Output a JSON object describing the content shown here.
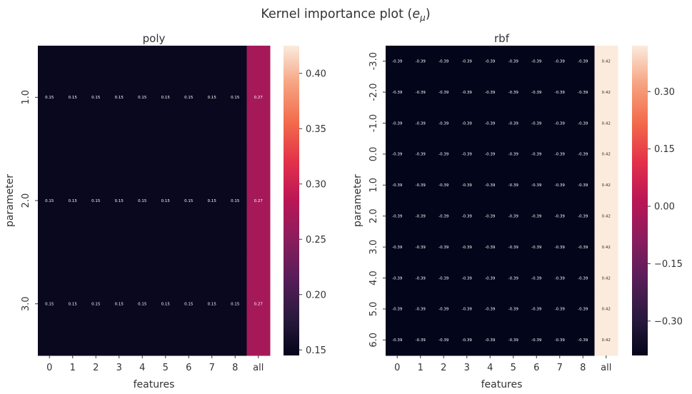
{
  "suptitle": "Kernel importance plot ($e_\\mu$)",
  "chart_data": [
    {
      "type": "heatmap",
      "title": "poly",
      "xlabel": "features",
      "ylabel": "parameter",
      "x_categories": [
        "0",
        "1",
        "2",
        "3",
        "4",
        "5",
        "6",
        "7",
        "8",
        "all"
      ],
      "y_categories": [
        "1.0",
        "2.0",
        "3.0"
      ],
      "values": [
        [
          0.15,
          0.15,
          0.15,
          0.15,
          0.15,
          0.15,
          0.15,
          0.15,
          0.15,
          0.27
        ],
        [
          0.15,
          0.15,
          0.15,
          0.15,
          0.15,
          0.15,
          0.15,
          0.15,
          0.15,
          0.27
        ],
        [
          0.15,
          0.15,
          0.15,
          0.15,
          0.15,
          0.15,
          0.15,
          0.15,
          0.15,
          0.27
        ]
      ],
      "colorbar": {
        "range": [
          0.145,
          0.425
        ],
        "ticks": [
          0.15,
          0.2,
          0.25,
          0.3,
          0.35,
          0.4
        ],
        "tick_labels": [
          "0.15",
          "0.20",
          "0.25",
          "0.30",
          "0.35",
          "0.40"
        ]
      },
      "colormap": "rocket"
    },
    {
      "type": "heatmap",
      "title": "rbf",
      "xlabel": "features",
      "ylabel": "parameter",
      "x_categories": [
        "0",
        "1",
        "2",
        "3",
        "4",
        "5",
        "6",
        "7",
        "8",
        "all"
      ],
      "y_categories": [
        "-3.0",
        "-2.0",
        "-1.0",
        "0.0",
        "1.0",
        "2.0",
        "3.0",
        "4.0",
        "5.0",
        "6.0"
      ],
      "values": [
        [
          -0.39,
          -0.39,
          -0.39,
          -0.39,
          -0.39,
          -0.39,
          -0.39,
          -0.39,
          -0.39,
          0.42
        ],
        [
          -0.39,
          -0.39,
          -0.39,
          -0.39,
          -0.39,
          -0.39,
          -0.39,
          -0.39,
          -0.39,
          0.42
        ],
        [
          -0.39,
          -0.39,
          -0.39,
          -0.39,
          -0.39,
          -0.39,
          -0.39,
          -0.39,
          -0.39,
          0.42
        ],
        [
          -0.39,
          -0.39,
          -0.39,
          -0.39,
          -0.39,
          -0.39,
          -0.39,
          -0.39,
          -0.39,
          0.42
        ],
        [
          -0.39,
          -0.39,
          -0.39,
          -0.39,
          -0.39,
          -0.39,
          -0.39,
          -0.39,
          -0.39,
          0.42
        ],
        [
          -0.39,
          -0.39,
          -0.39,
          -0.39,
          -0.39,
          -0.39,
          -0.39,
          -0.39,
          -0.39,
          0.42
        ],
        [
          -0.39,
          -0.39,
          -0.39,
          -0.39,
          -0.39,
          -0.39,
          -0.39,
          -0.39,
          -0.39,
          0.42
        ],
        [
          -0.39,
          -0.39,
          -0.39,
          -0.39,
          -0.39,
          -0.39,
          -0.39,
          -0.39,
          -0.39,
          0.42
        ],
        [
          -0.39,
          -0.39,
          -0.39,
          -0.39,
          -0.39,
          -0.39,
          -0.39,
          -0.39,
          -0.39,
          0.42
        ],
        [
          -0.39,
          -0.39,
          -0.39,
          -0.39,
          -0.39,
          -0.39,
          -0.39,
          -0.39,
          -0.39,
          0.42
        ]
      ],
      "colorbar": {
        "range": [
          -0.39,
          0.42
        ],
        "ticks": [
          -0.3,
          -0.15,
          0.0,
          0.15,
          0.3
        ],
        "tick_labels": [
          "−0.30",
          "−0.15",
          "0.00",
          "0.15",
          "0.30"
        ]
      },
      "colormap": "rocket"
    }
  ]
}
